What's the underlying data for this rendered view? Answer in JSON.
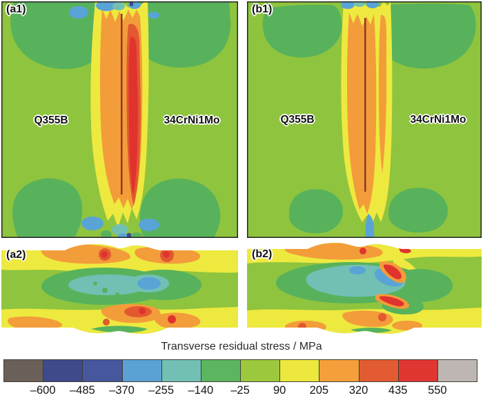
{
  "chart_data": {
    "type": "heatmap",
    "title": "Transverse residual stress / MPa",
    "unit": "MPa",
    "colorbar_levels": [
      -600,
      -485,
      -370,
      -255,
      -140,
      -25,
      90,
      205,
      320,
      435,
      550
    ],
    "colorbar_colors": [
      "#6b6059",
      "#3e4a8c",
      "#46579e",
      "#5aa2d4",
      "#72bfb3",
      "#5cb560",
      "#9cc83e",
      "#ece83e",
      "#f59e3c",
      "#e25b33",
      "#e03531",
      "#bdb6b2"
    ],
    "panels": [
      {
        "tag": "(a1)",
        "materials": [
          "Q355B",
          "34CrNi1Mo"
        ],
        "view": "top view",
        "feature": "vertical tensile weld band (yellow/orange/red) with compressive green lobes at both ends"
      },
      {
        "tag": "(b1)",
        "materials": [
          "Q355B",
          "34CrNi1Mo"
        ],
        "view": "top view",
        "feature": "vertical tensile weld band (yellow/orange) with compressive green lobes at both ends"
      },
      {
        "tag": "(a2)",
        "view": "cross-section",
        "feature": "tensile yellow/orange layers near surfaces, compressive green/teal core, local red spots"
      },
      {
        "tag": "(b2)",
        "view": "cross-section",
        "feature": "large compressive teal core with sky-blue pockets, tensile yellow/orange surface layers, red streaks near weld"
      }
    ]
  },
  "figure": {
    "panels": {
      "a1": {
        "tag": "(a1)",
        "label_left": "Q355B",
        "label_right": "34CrNi1Mo"
      },
      "b1": {
        "tag": "(b1)",
        "label_left": "Q355B",
        "label_right": "34CrNi1Mo"
      },
      "a2": {
        "tag": "(a2)"
      },
      "b2": {
        "tag": "(b2)"
      }
    },
    "colorbar": {
      "title": "Transverse residual stress / MPa",
      "tick_labels": [
        "–600",
        "–485",
        "–370",
        "–255",
        "–140",
        "–25",
        "90",
        "205",
        "320",
        "435",
        "550"
      ],
      "colors": [
        "#6b6059",
        "#3e4a8c",
        "#46579e",
        "#5aa2d4",
        "#72bfb3",
        "#5cb560",
        "#9cc83e",
        "#ece83e",
        "#f59e3c",
        "#e25b33",
        "#e03531",
        "#bdb6b2"
      ]
    }
  }
}
